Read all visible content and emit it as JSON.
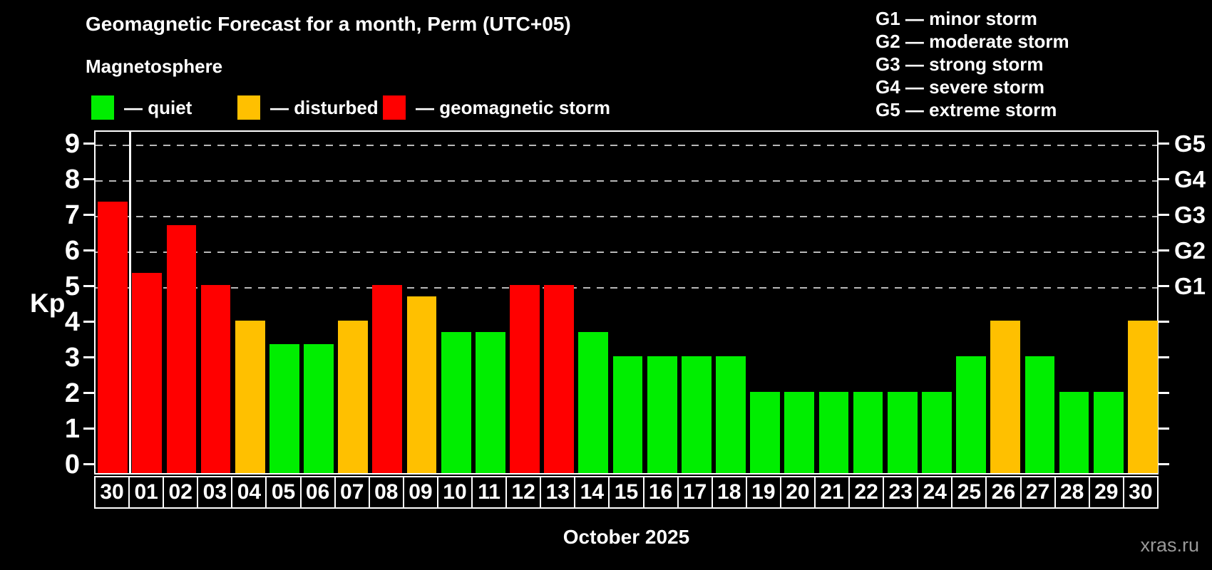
{
  "header": {
    "title": "Geomagnetic Forecast for a month, Perm (UTC+05)",
    "subtitle": "Magnetosphere"
  },
  "legend": {
    "items": [
      {
        "label": "— quiet",
        "status": "quiet",
        "x": 128
      },
      {
        "label": "— disturbed",
        "status": "disturbed",
        "x": 333
      },
      {
        "label": "— geomagnetic storm",
        "status": "storm",
        "x": 537
      }
    ]
  },
  "g_legend": {
    "lines": [
      "G1 — minor storm",
      "G2 — moderate storm",
      "G3 — strong storm",
      "G4 — severe storm",
      "G5 — extreme storm"
    ]
  },
  "colors": {
    "quiet": "#00ee00",
    "disturbed": "#ffc000",
    "storm": "#ff0000",
    "grid": "#b8b8b8",
    "axis": "#ffffff",
    "watermark": "#999999"
  },
  "watermark": "xras.ru",
  "chart_data": {
    "type": "bar",
    "title": "Geomagnetic Forecast for a month, Perm (UTC+05)",
    "subtitle": "Magnetosphere",
    "xlabel": "October 2025",
    "ylabel": "Kp",
    "ylim": [
      0,
      9.4
    ],
    "grid": "dashed horizontal lines at Kp 5-9 only",
    "legend_position": "top",
    "categories": [
      "30",
      "01",
      "02",
      "03",
      "04",
      "05",
      "06",
      "07",
      "08",
      "09",
      "10",
      "11",
      "12",
      "13",
      "14",
      "15",
      "16",
      "17",
      "18",
      "19",
      "20",
      "21",
      "22",
      "23",
      "24",
      "25",
      "26",
      "27",
      "28",
      "29",
      "30"
    ],
    "values": [
      7.33,
      5.33,
      6.67,
      5.0,
      4.0,
      3.33,
      3.33,
      4.0,
      5.0,
      4.67,
      3.67,
      3.67,
      5.0,
      5.0,
      3.67,
      3.0,
      3.0,
      3.0,
      3.0,
      2.0,
      2.0,
      2.0,
      2.0,
      2.0,
      2.0,
      3.0,
      4.0,
      3.0,
      2.0,
      2.0,
      4.0
    ],
    "statuses": [
      "storm",
      "storm",
      "storm",
      "storm",
      "disturbed",
      "quiet",
      "quiet",
      "disturbed",
      "storm",
      "disturbed",
      "quiet",
      "quiet",
      "storm",
      "storm",
      "quiet",
      "quiet",
      "quiet",
      "quiet",
      "quiet",
      "quiet",
      "quiet",
      "quiet",
      "quiet",
      "quiet",
      "quiet",
      "quiet",
      "disturbed",
      "quiet",
      "quiet",
      "quiet",
      "disturbed"
    ],
    "month_separator_after_slot": 1,
    "y_ticks_left": [
      0,
      1,
      2,
      3,
      4,
      5,
      6,
      7,
      8,
      9
    ],
    "y_ticks_right": [
      {
        "kp": 5,
        "label": "G1"
      },
      {
        "kp": 6,
        "label": "G2"
      },
      {
        "kp": 7,
        "label": "G3"
      },
      {
        "kp": 8,
        "label": "G4"
      },
      {
        "kp": 9,
        "label": "G5"
      }
    ]
  }
}
